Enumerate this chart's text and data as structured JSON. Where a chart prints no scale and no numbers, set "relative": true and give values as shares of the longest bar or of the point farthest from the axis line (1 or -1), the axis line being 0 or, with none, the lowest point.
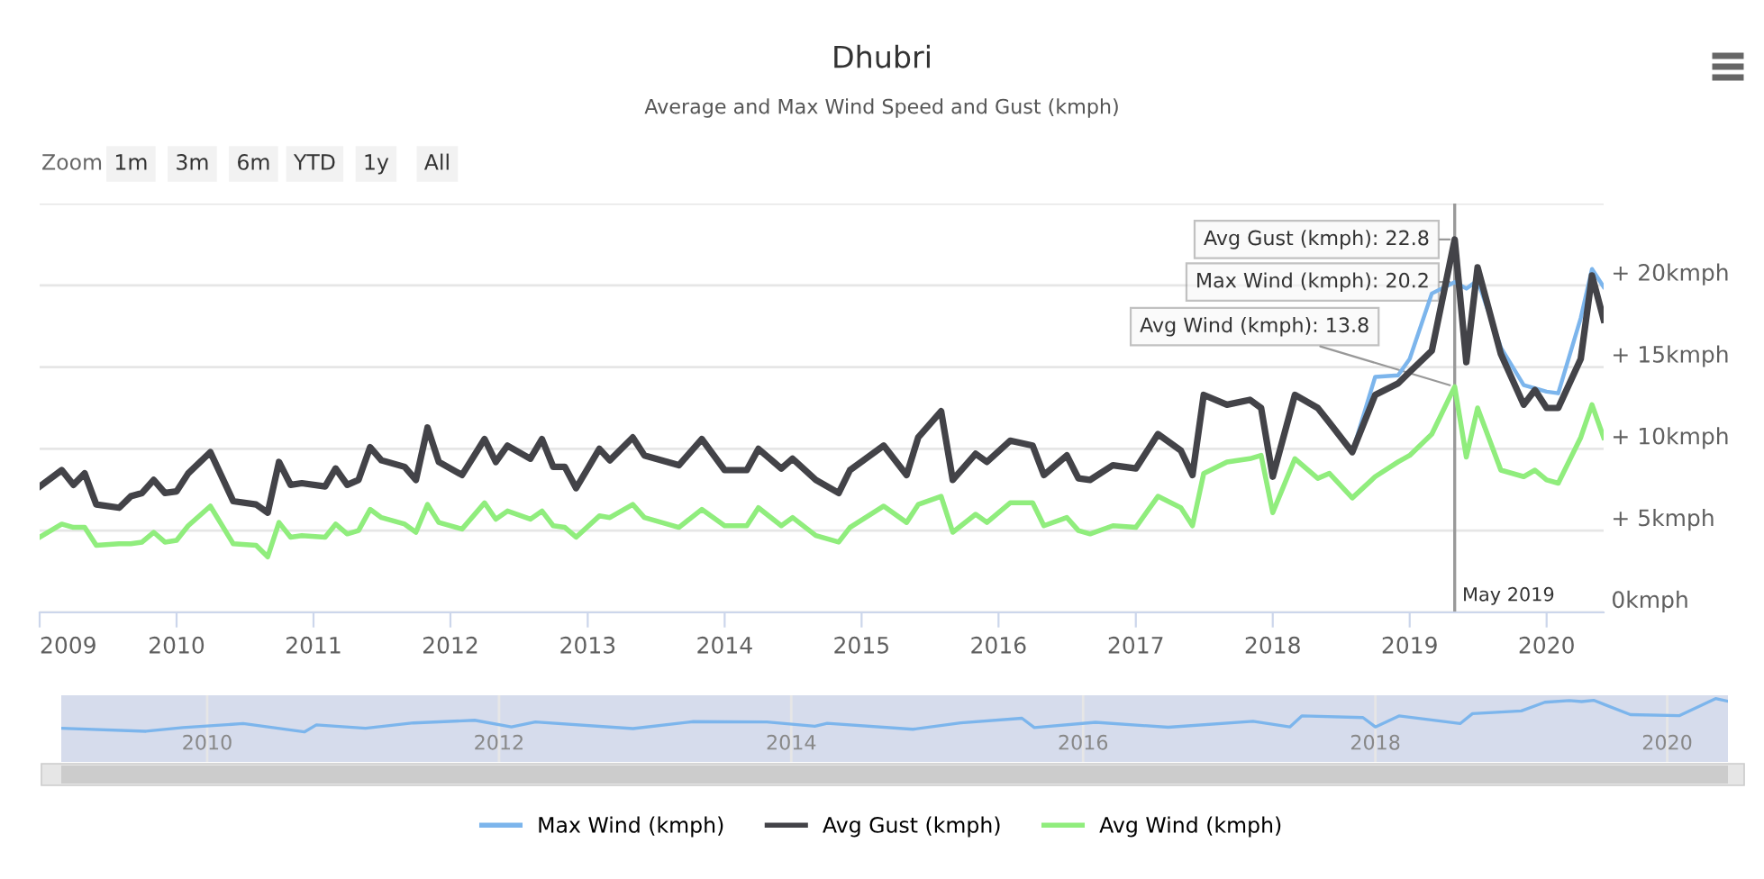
{
  "chart_data": [
    {
      "type": "line",
      "title": "Dhubri",
      "subtitle": "Average and Max Wind Speed and Gust (kmph)",
      "annotations": [
        "Zoom",
        "1m",
        "3m",
        "6m",
        "YTD",
        "1y",
        "All",
        {
          "text": "Avg Gust (kmph): 22.8",
          "x": "2019-05",
          "y": 22.8
        },
        {
          "text": "Max Wind (kmph): 20.2",
          "x": "2019-05",
          "y": 20.2
        },
        {
          "text": "Avg Wind (kmph): 13.8",
          "x": "2019-05",
          "y": 13.8
        }
      ],
      "x": [
        "2009-01",
        "2009-03",
        "2009-04",
        "2009-05",
        "2009-06",
        "2009-08",
        "2009-09",
        "2009-10",
        "2009-11",
        "2009-12",
        "2010-01",
        "2010-02",
        "2010-04",
        "2010-06",
        "2010-08",
        "2010-09",
        "2010-10",
        "2010-11",
        "2010-12",
        "2011-02",
        "2011-03",
        "2011-04",
        "2011-05",
        "2011-06",
        "2011-07",
        "2011-09",
        "2011-10",
        "2011-11",
        "2011-12",
        "2012-02",
        "2012-04",
        "2012-05",
        "2012-06",
        "2012-08",
        "2012-09",
        "2012-10",
        "2012-11",
        "2012-12",
        "2013-02",
        "2013-03",
        "2013-05",
        "2013-06",
        "2013-09",
        "2013-11",
        "2014-01",
        "2014-03",
        "2014-04",
        "2014-06",
        "2014-07",
        "2014-09",
        "2014-11",
        "2014-12",
        "2015-03",
        "2015-05",
        "2015-06",
        "2015-08",
        "2015-09",
        "2015-11",
        "2015-12",
        "2016-02",
        "2016-04",
        "2016-05",
        "2016-07",
        "2016-08",
        "2016-09",
        "2016-11",
        "2017-01",
        "2017-03",
        "2017-05",
        "2017-06",
        "2017-07",
        "2017-09",
        "2017-11",
        "2017-12",
        "2018-01",
        "2018-03",
        "2018-05",
        "2018-06",
        "2018-08",
        "2018-10",
        "2018-12",
        "2019-01",
        "2019-03",
        "2019-05",
        "2019-06",
        "2019-07",
        "2019-09",
        "2019-11",
        "2019-12",
        "2020-01",
        "2020-02",
        "2020-04",
        "2020-05",
        "2020-06"
      ],
      "series": [
        {
          "name": "Max Wind (kmph)",
          "color": "#7cb5ec",
          "x": [
            "2018-08",
            "2018-10",
            "2018-12",
            "2019-01",
            "2019-03",
            "2019-05",
            "2019-06",
            "2019-07",
            "2019-09",
            "2019-11",
            "2019-12",
            "2020-01",
            "2020-02",
            "2020-04",
            "2020-05",
            "2020-06"
          ],
          "values": [
            9.8,
            14.4,
            14.5,
            15.5,
            19.5,
            20.2,
            19.8,
            20.3,
            16.2,
            13.9,
            13.7,
            13.5,
            13.4,
            18.0,
            21.0,
            19.9
          ]
        },
        {
          "name": "Avg Gust (kmph)",
          "color": "#434348",
          "values": [
            7.7,
            8.7,
            7.8,
            8.5,
            6.6,
            6.4,
            7.1,
            7.3,
            8.1,
            7.3,
            7.4,
            8.5,
            9.8,
            6.8,
            6.6,
            6.1,
            9.2,
            7.8,
            7.9,
            7.7,
            8.8,
            7.8,
            8.1,
            10.1,
            9.3,
            8.9,
            8.1,
            11.3,
            9.2,
            8.4,
            10.6,
            9.2,
            10.2,
            9.4,
            10.6,
            8.9,
            8.9,
            7.6,
            10.0,
            9.3,
            10.7,
            9.6,
            9.0,
            10.6,
            8.7,
            8.7,
            10.0,
            8.8,
            9.4,
            8.1,
            7.3,
            8.7,
            10.2,
            8.4,
            10.7,
            12.3,
            8.1,
            9.7,
            9.2,
            10.5,
            10.2,
            8.4,
            9.6,
            8.2,
            8.1,
            9.0,
            8.8,
            10.9,
            9.9,
            8.4,
            13.3,
            12.7,
            13.0,
            12.5,
            8.3,
            13.3,
            12.5,
            11.6,
            9.8,
            13.3,
            14.0,
            14.7,
            16.0,
            22.8,
            15.3,
            21.1,
            15.8,
            12.7,
            13.6,
            12.5,
            12.5,
            15.5,
            20.6,
            17.9
          ]
        },
        {
          "name": "Avg Wind (kmph)",
          "color": "#90ed7d",
          "values": [
            4.6,
            5.4,
            5.2,
            5.2,
            4.1,
            4.2,
            4.2,
            4.3,
            4.9,
            4.3,
            4.4,
            5.3,
            6.5,
            4.2,
            4.1,
            3.4,
            5.5,
            4.6,
            4.7,
            4.6,
            5.4,
            4.8,
            5.0,
            6.3,
            5.8,
            5.4,
            4.9,
            6.6,
            5.5,
            5.1,
            6.7,
            5.7,
            6.2,
            5.7,
            6.2,
            5.3,
            5.2,
            4.6,
            5.9,
            5.8,
            6.6,
            5.8,
            5.2,
            6.3,
            5.3,
            5.3,
            6.4,
            5.3,
            5.8,
            4.7,
            4.3,
            5.2,
            6.5,
            5.5,
            6.6,
            7.1,
            4.9,
            6.0,
            5.5,
            6.7,
            6.7,
            5.3,
            5.8,
            5.0,
            4.8,
            5.3,
            5.2,
            7.1,
            6.4,
            5.3,
            8.5,
            9.2,
            9.4,
            9.6,
            6.1,
            9.4,
            8.2,
            8.5,
            7.0,
            8.3,
            9.2,
            9.6,
            10.9,
            13.8,
            9.5,
            12.5,
            8.7,
            8.3,
            8.7,
            8.1,
            7.9,
            10.7,
            12.7,
            10.7
          ]
        }
      ],
      "xlim": [
        "2009-01",
        "2020-06"
      ],
      "xticks": [
        {
          "value": "2009",
          "label": "2009"
        },
        {
          "value": "2010",
          "label": "2010"
        },
        {
          "value": "2011",
          "label": "2011"
        },
        {
          "value": "2012",
          "label": "2012"
        },
        {
          "value": "2013",
          "label": "2013"
        },
        {
          "value": "2014",
          "label": "2014"
        },
        {
          "value": "2015",
          "label": "2015"
        },
        {
          "value": "2016",
          "label": "2016"
        },
        {
          "value": "2017",
          "label": "2017"
        },
        {
          "value": "2018",
          "label": "2018"
        },
        {
          "value": "2019",
          "label": "2019"
        },
        {
          "value": "2020",
          "label": "2020"
        }
      ],
      "ylim": [
        0,
        25
      ],
      "yticks": [
        {
          "value": 0,
          "label": "0kmph"
        },
        {
          "value": 5,
          "label": "+ 5kmph"
        },
        {
          "value": 10,
          "label": "+ 10kmph"
        },
        {
          "value": 15,
          "label": "+ 15kmph"
        },
        {
          "value": 20,
          "label": "+ 20kmph"
        },
        {
          "value": 25,
          "label": null
        }
      ],
      "ref_lines": [
        {
          "axis": "x",
          "value": "2019-05",
          "color": "#999999",
          "label": "May 2019"
        }
      ],
      "grid": "y",
      "legend": "bottom",
      "line_style": "solid"
    },
    {
      "type": "line",
      "relative": true,
      "tick_labels": "x",
      "grid": "x",
      "x": [
        "2009-01",
        "2009-08",
        "2009-11",
        "2010-04",
        "2010-09",
        "2010-10",
        "2011-02",
        "2011-06",
        "2011-11",
        "2012-02",
        "2012-04",
        "2012-12",
        "2013-05",
        "2013-11",
        "2014-03",
        "2014-04",
        "2014-11",
        "2015-03",
        "2015-08",
        "2015-09",
        "2016-02",
        "2016-08",
        "2017-03",
        "2017-06",
        "2017-07",
        "2017-12",
        "2018-01",
        "2018-03",
        "2018-08",
        "2018-09",
        "2019-01",
        "2019-03",
        "2019-05",
        "2019-06",
        "2019-07",
        "2019-10",
        "2020-02",
        "2020-05",
        "2020-06"
      ],
      "series": [
        {
          "color": "#7cb5ec",
          "values": [
            0.11,
            0.02,
            0.13,
            0.25,
            0,
            0.21,
            0.11,
            0.27,
            0.35,
            0.15,
            0.3,
            0.1,
            0.31,
            0.3,
            0.17,
            0.26,
            0.08,
            0.27,
            0.41,
            0.13,
            0.29,
            0.14,
            0.32,
            0.15,
            0.48,
            0.43,
            0.15,
            0.48,
            0.25,
            0.55,
            0.63,
            0.89,
            0.94,
            0.91,
            0.95,
            0.52,
            0.49,
            1,
            0.92
          ]
        }
      ],
      "xlim": [
        "2009-01",
        "2020-06"
      ],
      "xticks": [
        {
          "value": "2010",
          "label": "2010"
        },
        {
          "value": "2012",
          "label": "2012"
        },
        {
          "value": "2014",
          "label": "2014"
        },
        {
          "value": "2016",
          "label": "2016"
        },
        {
          "value": "2018",
          "label": "2018"
        },
        {
          "value": "2020",
          "label": "2020"
        }
      ]
    }
  ]
}
